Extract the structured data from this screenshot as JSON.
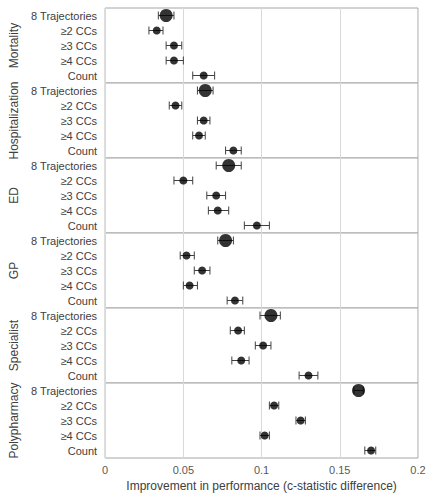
{
  "chart_data": {
    "type": "forest",
    "xlabel": "Improvement in performance (c-statistic difference)",
    "categories": [
      "8 Trajectories",
      "≥2 CCs",
      "≥3 CCs",
      "≥4 CCs",
      "Count"
    ],
    "panels": [
      {
        "name": "Mortality",
        "values": [
          0.039,
          0.033,
          0.044,
          0.044,
          0.063
        ],
        "lower": [
          0.034,
          0.028,
          0.039,
          0.039,
          0.056
        ],
        "upper": [
          0.044,
          0.037,
          0.049,
          0.05,
          0.07
        ]
      },
      {
        "name": "Hospitalization",
        "values": [
          0.064,
          0.045,
          0.063,
          0.06,
          0.082
        ],
        "lower": [
          0.059,
          0.041,
          0.059,
          0.056,
          0.077
        ],
        "upper": [
          0.069,
          0.049,
          0.067,
          0.064,
          0.087
        ]
      },
      {
        "name": "ED",
        "values": [
          0.079,
          0.05,
          0.071,
          0.072,
          0.097
        ],
        "lower": [
          0.071,
          0.044,
          0.065,
          0.066,
          0.089
        ],
        "upper": [
          0.087,
          0.056,
          0.077,
          0.079,
          0.105
        ]
      },
      {
        "name": "GP",
        "values": [
          0.077,
          0.052,
          0.062,
          0.054,
          0.083
        ],
        "lower": [
          0.072,
          0.048,
          0.057,
          0.05,
          0.078
        ],
        "upper": [
          0.082,
          0.057,
          0.067,
          0.059,
          0.088
        ]
      },
      {
        "name": "Specialist",
        "values": [
          0.106,
          0.085,
          0.101,
          0.087,
          0.13
        ],
        "lower": [
          0.099,
          0.08,
          0.096,
          0.081,
          0.124
        ],
        "upper": [
          0.112,
          0.089,
          0.106,
          0.092,
          0.136
        ]
      },
      {
        "name": "Polypharmacy",
        "values": [
          0.162,
          0.108,
          0.125,
          0.102,
          0.17
        ],
        "lower": [
          0.159,
          0.105,
          0.122,
          0.099,
          0.166
        ],
        "upper": [
          0.165,
          0.111,
          0.128,
          0.105,
          0.173
        ]
      }
    ],
    "xlim": [
      0,
      0.2
    ],
    "xticks": [
      0,
      0.05,
      0.1,
      0.15,
      0.2
    ],
    "color": "#000000",
    "grid": true
  }
}
